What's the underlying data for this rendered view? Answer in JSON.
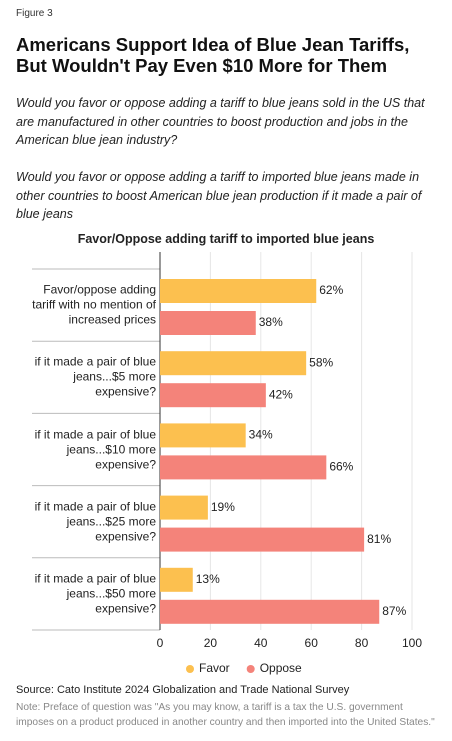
{
  "figure_label": "Figure 3",
  "title": "Americans Support Idea of Blue Jean Tariffs, But Wouldn't Pay Even $10 More for Them",
  "questions": [
    "Would you favor or oppose adding a tariff to blue jeans sold in the US that are manufactured in other countries to boost production and jobs in the American blue jean industry?",
    "Would you favor or oppose adding a tariff to imported blue jeans made in other countries to boost American blue jean production if it made a pair of blue jeans"
  ],
  "chart_data": {
    "type": "bar",
    "orientation": "horizontal",
    "title": "Favor/Oppose adding tariff to imported blue jeans",
    "categories": [
      "Favor/oppose adding tariff with no mention of increased prices",
      "if it made a pair of blue jeans...$5 more expensive?",
      "if it made a pair of blue jeans...$10 more expensive?",
      "if it made a pair of blue jeans...$25 more expensive?",
      "if it made a pair of blue jeans...$50 more expensive?"
    ],
    "series": [
      {
        "name": "Favor",
        "color": "#fcc04f",
        "values": [
          62,
          58,
          34,
          19,
          13
        ],
        "value_labels": [
          "62%",
          "58%",
          "34%",
          "19%",
          "13%"
        ]
      },
      {
        "name": "Oppose",
        "color": "#f4837a",
        "values": [
          38,
          42,
          66,
          81,
          87
        ],
        "value_labels": [
          "38%",
          "42%",
          "66%",
          "81%",
          "87%"
        ]
      }
    ],
    "xlim": [
      0,
      100
    ],
    "xticks": [
      0,
      20,
      40,
      60,
      80,
      100
    ],
    "grid": true,
    "legend": "bottom"
  },
  "source": "Source: Cato Institute 2024 Globalization and Trade National Survey",
  "note": "Note: Preface of question was \"As you may know, a tariff is a tax the U.S. government imposes on a product produced in another country and then imported into the United States.\""
}
